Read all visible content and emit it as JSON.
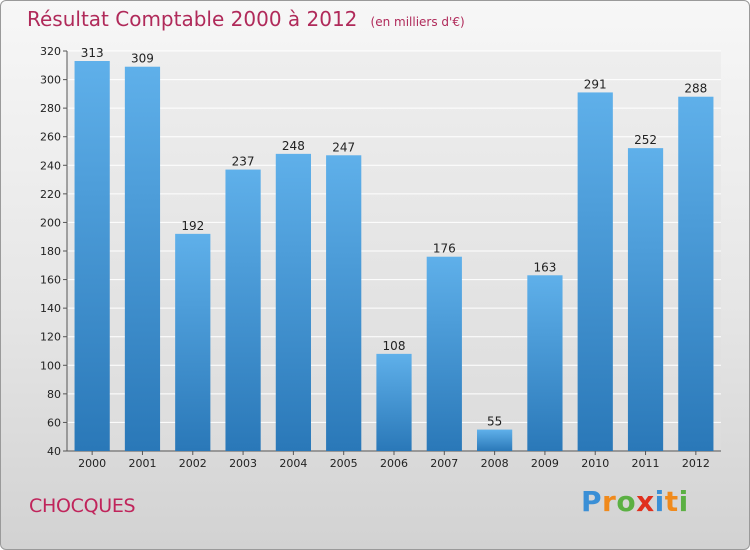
{
  "header": {
    "title": "Résultat Comptable 2000 à 2012",
    "unit": "(en milliers d'€)"
  },
  "footer": {
    "place": "CHOCQUES",
    "logo": "Proxiti"
  },
  "colors": {
    "bar_top": "#5fb0ea",
    "bar_bottom": "#2a78b8",
    "title": "#b02a5a",
    "grid": "#ffffff"
  },
  "chart_data": {
    "type": "bar",
    "title": "Résultat Comptable 2000 à 2012",
    "subtitle": "(en milliers d'€)",
    "xlabel": "",
    "ylabel": "",
    "categories": [
      "2000",
      "2001",
      "2002",
      "2003",
      "2004",
      "2005",
      "2006",
      "2007",
      "2008",
      "2009",
      "2010",
      "2011",
      "2012"
    ],
    "values": [
      313,
      309,
      192,
      237,
      248,
      247,
      108,
      176,
      55,
      163,
      291,
      252,
      288
    ],
    "ylim": [
      40,
      320
    ],
    "yticks": [
      40,
      60,
      80,
      100,
      120,
      140,
      160,
      180,
      200,
      220,
      240,
      260,
      280,
      300,
      320
    ],
    "grid": true,
    "legend": "none"
  }
}
